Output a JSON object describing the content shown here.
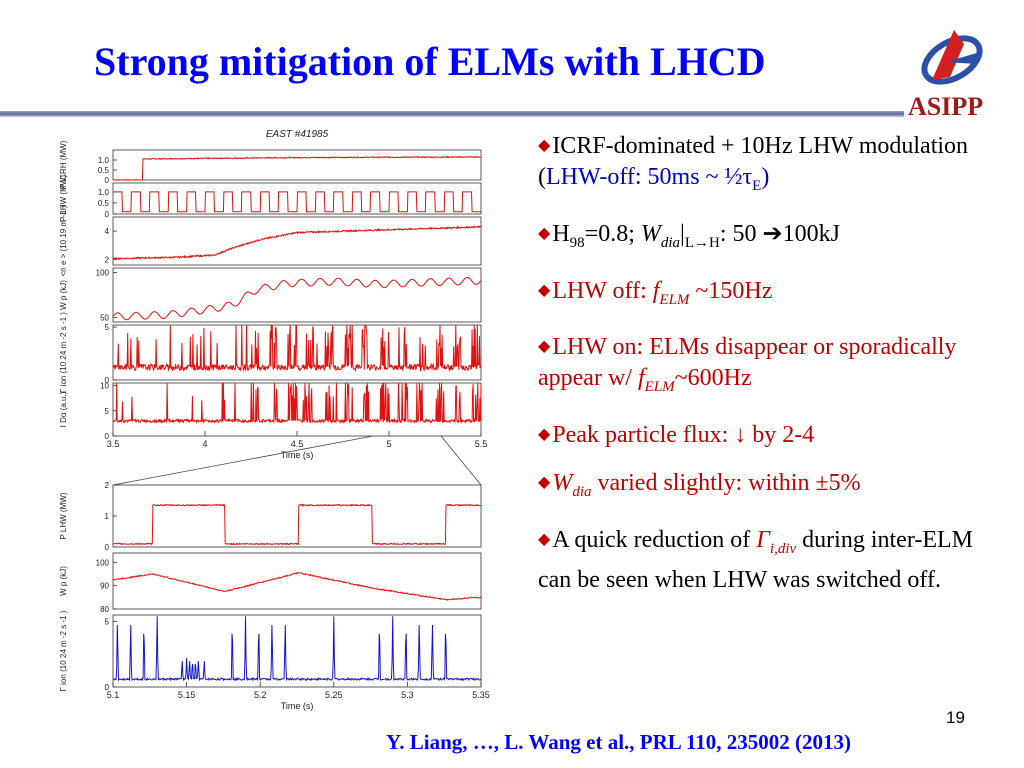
{
  "slide": {
    "title": "Strong mitigation of ELMs with LHCD",
    "logo_text": "ASIPP",
    "page_number": "19",
    "citation": "Y. Liang, …, L. Wang et al., PRL 110, 235002 (2013)"
  },
  "bullets": [
    {
      "parts": [
        [
          "ICRF-dominated + 10Hz LHW modulation (",
          "black"
        ],
        [
          "LHW-off:  50ms ~ ½τ",
          "blue"
        ],
        [
          "E",
          "blue-sub"
        ],
        [
          ")",
          "blue"
        ]
      ]
    },
    {
      "parts": [
        [
          "H",
          "black"
        ],
        [
          "98",
          "sub"
        ],
        [
          "=0.8; ",
          "black"
        ],
        [
          "W",
          "i"
        ],
        [
          "dia",
          "i-sub"
        ],
        [
          "|",
          "black"
        ],
        [
          "L→H",
          "sub"
        ],
        [
          ": 50 ➔100kJ",
          "black"
        ]
      ]
    },
    {
      "parts": [
        [
          "LHW off:  ",
          "red"
        ],
        [
          "f",
          "red-i"
        ],
        [
          "ELM",
          "red-i-sub"
        ],
        [
          " ~150Hz",
          "red"
        ]
      ]
    },
    {
      "parts": [
        [
          "LHW on: ELMs disappear or sporadically appear w/  ",
          "red"
        ],
        [
          "f",
          "red-i"
        ],
        [
          "ELM",
          "red-i-sub"
        ],
        [
          "~600Hz",
          "red"
        ]
      ]
    },
    {
      "parts": [
        [
          "Peak particle flux: ↓ by 2-4",
          "red"
        ]
      ]
    },
    {
      "parts": [
        [
          "W",
          "red-i"
        ],
        [
          "dia",
          "red-i-sub"
        ],
        [
          " varied slightly: within ±5%",
          "red"
        ]
      ]
    },
    {
      "parts": [
        [
          "A quick reduction of ",
          "black"
        ],
        [
          "Γ",
          "red-i"
        ],
        [
          "i,div",
          "red-i-sub"
        ],
        [
          " during inter-ELM can be seen when LHW was switched off.",
          "black"
        ]
      ]
    }
  ],
  "colors": {
    "title": "#0000ff",
    "trace": "#e0120f",
    "ion_trace_zoom": "#1515d0",
    "bullet_marker": "#c00000",
    "logo": "#9e1a1a"
  },
  "chart_data": [
    {
      "type": "line",
      "title": "EAST #41985",
      "xlabel": "Time (s)",
      "xlim": [
        3.5,
        5.5
      ],
      "xticks": [
        "3.5",
        "4",
        "4.5",
        "5",
        "5.5"
      ],
      "panels": [
        {
          "ylabel": [
            "P",
            "ICRH",
            "(MW)"
          ],
          "ylim": [
            0,
            1.5
          ],
          "yticks": [
            "1.0",
            "0.5",
            "0"
          ],
          "points": [
            [
              3.5,
              0
            ],
            [
              3.66,
              0
            ],
            [
              3.66,
              1.05
            ],
            [
              4.0,
              1.08
            ],
            [
              4.5,
              1.12
            ],
            [
              5.0,
              1.14
            ],
            [
              5.5,
              1.15
            ]
          ]
        },
        {
          "ylabel": [
            "P",
            "LHW",
            "(MW)"
          ],
          "ylim": [
            0,
            1.4
          ],
          "yticks": [
            "1.0",
            "0.5",
            "0"
          ],
          "modulation": {
            "period_s": 0.1,
            "off_s": 0.05,
            "high": 1.0,
            "low": 0.1
          }
        },
        {
          "ylabel": [
            "<n",
            "e",
            ">",
            "(10",
            "19",
            "m",
            "-3",
            ")"
          ],
          "ylim": [
            1.6,
            5
          ],
          "yticks": [
            "4",
            "2"
          ],
          "points": [
            [
              3.5,
              2.05
            ],
            [
              3.85,
              2.15
            ],
            [
              4.05,
              2.3
            ],
            [
              4.15,
              2.8
            ],
            [
              4.3,
              3.4
            ],
            [
              4.5,
              3.9
            ],
            [
              5.0,
              4.1
            ],
            [
              5.5,
              4.3
            ]
          ]
        },
        {
          "ylabel": [
            "W",
            "p",
            "(kJ)"
          ],
          "ylim": [
            45,
            105
          ],
          "yticks": [
            "100",
            "50"
          ],
          "points": [
            [
              3.5,
              51
            ],
            [
              3.8,
              53
            ],
            [
              4.05,
              60
            ],
            [
              4.15,
              64
            ],
            [
              4.28,
              81
            ],
            [
              4.45,
              88
            ],
            [
              4.7,
              90
            ],
            [
              4.95,
              87
            ],
            [
              5.2,
              89
            ],
            [
              5.5,
              91
            ]
          ],
          "ripple": 4
        },
        {
          "ylabel": [
            "Γ",
            "ion",
            "(10",
            "24",
            "m",
            "-2",
            "s",
            "-1",
            ")"
          ],
          "ylim": [
            0,
            5.2
          ],
          "yticks": [
            "5",
            "0"
          ],
          "baseline": 1.2,
          "spike_height": 4.5
        },
        {
          "ylabel": [
            "I",
            "Dα",
            "(a.u.)"
          ],
          "ylim": [
            0,
            10.5
          ],
          "yticks": [
            "10",
            "5",
            "0"
          ],
          "baseline": 3.0,
          "spike_height": 9.5
        }
      ]
    },
    {
      "type": "line",
      "xlabel": "Time (s)",
      "xlim": [
        5.1,
        5.35
      ],
      "xticks": [
        "5.1",
        "5.15",
        "5.2",
        "5.25",
        "5.3",
        "5.35"
      ],
      "panels": [
        {
          "ylabel": [
            "P",
            "LHW",
            "(MW)"
          ],
          "ylim": [
            0,
            2
          ],
          "yticks": [
            "2",
            "1",
            "0"
          ],
          "modulation": {
            "on_intervals": [
              [
                5.127,
                5.176
              ],
              [
                5.226,
                5.276
              ],
              [
                5.326,
                5.35
              ]
            ],
            "high": 1.35,
            "low": 0.1
          }
        },
        {
          "ylabel": [
            "W",
            "p",
            "(kJ)"
          ],
          "ylim": [
            80,
            104
          ],
          "yticks": [
            "100",
            "90",
            "80"
          ],
          "points": [
            [
              5.1,
              92.5
            ],
            [
              5.127,
              95
            ],
            [
              5.176,
              87.5
            ],
            [
              5.226,
              95.5
            ],
            [
              5.276,
              89
            ],
            [
              5.326,
              84
            ],
            [
              5.35,
              85
            ]
          ]
        },
        {
          "ylabel": [
            "Γ",
            "ion",
            "(10",
            "24",
            "m",
            "-2",
            "s",
            "-1",
            ")"
          ],
          "ylim": [
            0,
            5.5
          ],
          "yticks": [
            "5",
            "0"
          ],
          "spikes_off": [
            5.103,
            5.112,
            5.121,
            5.13,
            5.181,
            5.19,
            5.199,
            5.208,
            5.217,
            5.281,
            5.29,
            5.299,
            5.308,
            5.317,
            5.326
          ],
          "spikes_on": [
            5.147,
            5.15,
            5.152,
            5.154,
            5.156,
            5.158,
            5.162,
            5.25
          ],
          "baseline": 0.6,
          "spike_height": 4.8
        }
      ]
    }
  ]
}
